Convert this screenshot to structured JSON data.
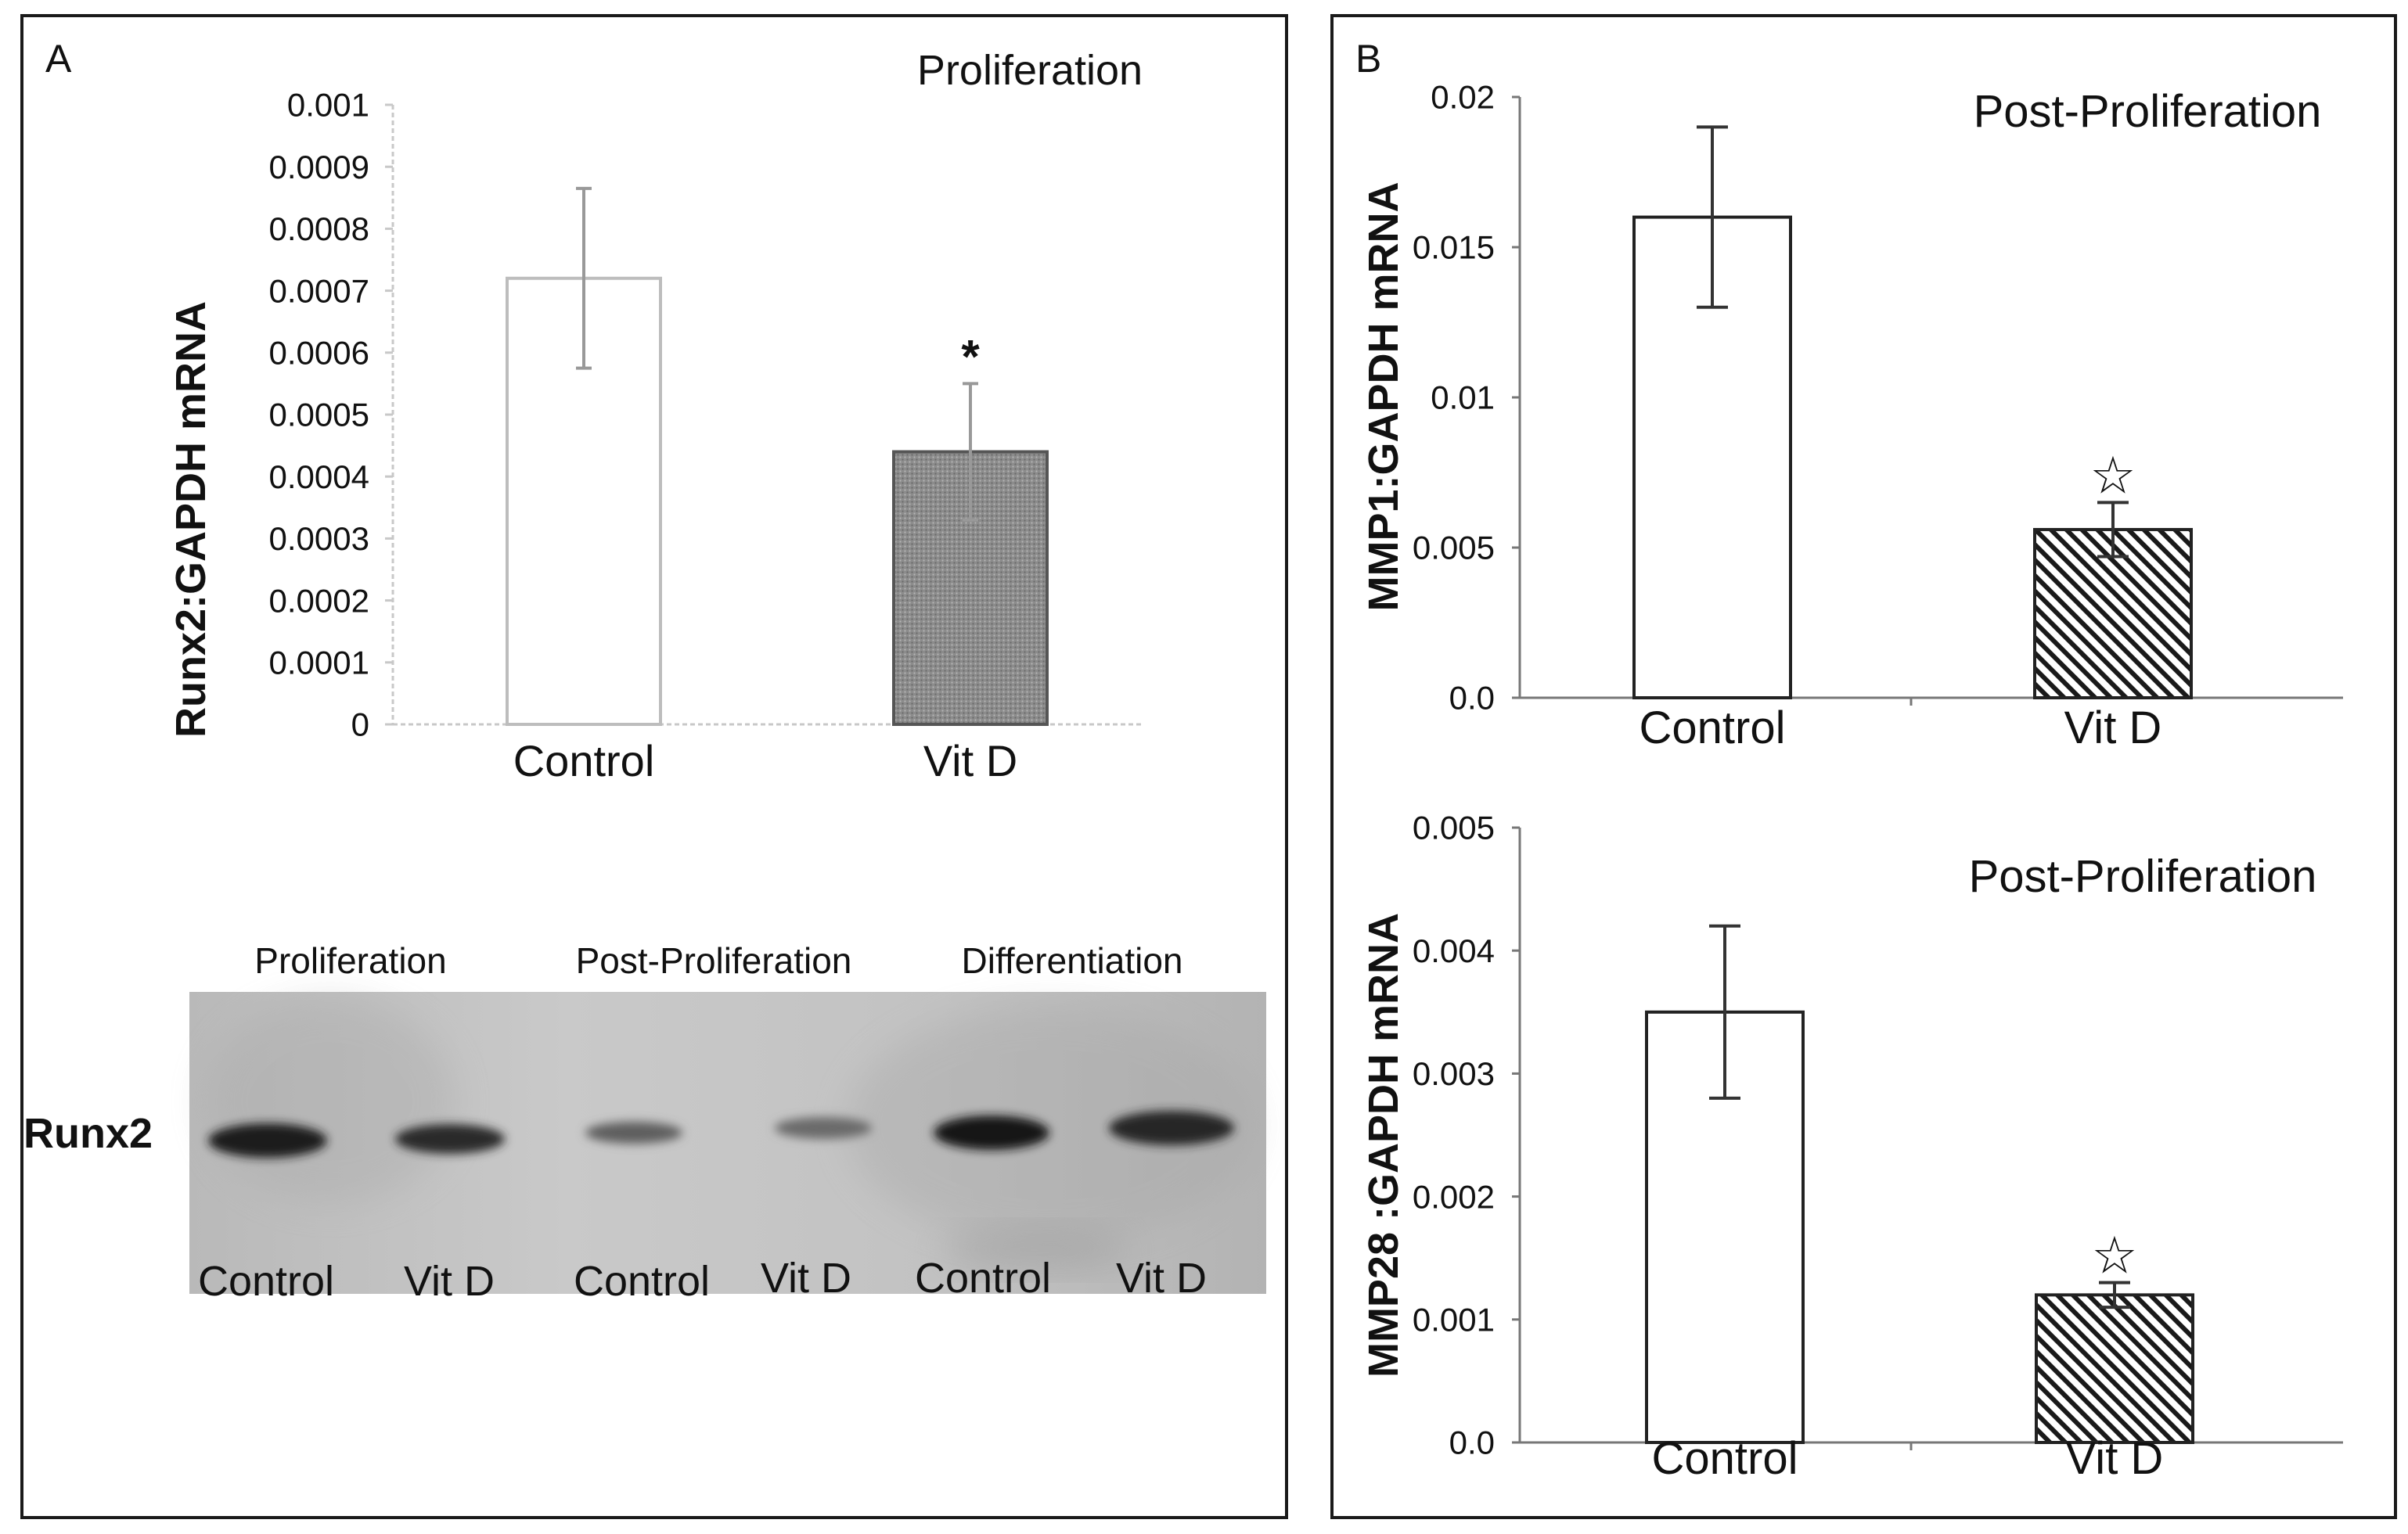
{
  "panels": {
    "a": {
      "letter": "A"
    },
    "b": {
      "letter": "B"
    }
  },
  "chart_data": [
    {
      "type": "bar",
      "panel": "A",
      "title": "Proliferation",
      "ylabel": "Runx2:GAPDH mRNA",
      "xlabel": "",
      "categories": [
        "Control",
        "Vit D"
      ],
      "values": [
        0.00072,
        0.00044
      ],
      "errors": [
        0.000145,
        0.00011
      ],
      "ylim": [
        0,
        0.001
      ],
      "yticks": [
        "0.001",
        "0.0009",
        "0.0008",
        "0.0007",
        "0.0006",
        "0.0005",
        "0.0004",
        "0.0003",
        "0.0002",
        "0.0001",
        "0"
      ],
      "bar_colors": [
        "#ffffff",
        "#8a8a8a"
      ],
      "significance": [
        "",
        "*"
      ],
      "grid": false
    },
    {
      "type": "bar",
      "panel": "B",
      "title": "Post-Proliferation",
      "ylabel": "MMP1:GAPDH mRNA",
      "xlabel": "",
      "categories": [
        "Control",
        "Vit D"
      ],
      "values": [
        0.016,
        0.0056
      ],
      "errors": [
        0.003,
        0.0009
      ],
      "ylim": [
        0,
        0.02
      ],
      "yticks": [
        "0.02",
        "0.015",
        "0.01",
        "0.005",
        "0.0"
      ],
      "bar_fill": [
        "plain",
        "hatched"
      ],
      "significance": [
        "",
        "☆"
      ],
      "grid": false
    },
    {
      "type": "bar",
      "panel": "B",
      "title": "Post-Proliferation",
      "ylabel": "MMP28 :GAPDH mRNA",
      "xlabel": "",
      "categories": [
        "Control",
        "Vit D"
      ],
      "values": [
        0.0035,
        0.0012
      ],
      "errors": [
        0.0007,
        0.0001
      ],
      "ylim": [
        0,
        0.005
      ],
      "yticks": [
        "0.005",
        "0.004",
        "0.003",
        "0.002",
        "0.001",
        "0.0"
      ],
      "bar_fill": [
        "plain",
        "hatched"
      ],
      "significance": [
        "",
        "☆"
      ],
      "grid": false
    }
  ],
  "blot": {
    "row_label": "Runx2",
    "stages": [
      "Proliferation",
      "Post-Proliferation",
      "Differentiation"
    ],
    "lanes": [
      "Control",
      "Vit D",
      "Control",
      "Vit D",
      "Control",
      "Vit D"
    ]
  }
}
